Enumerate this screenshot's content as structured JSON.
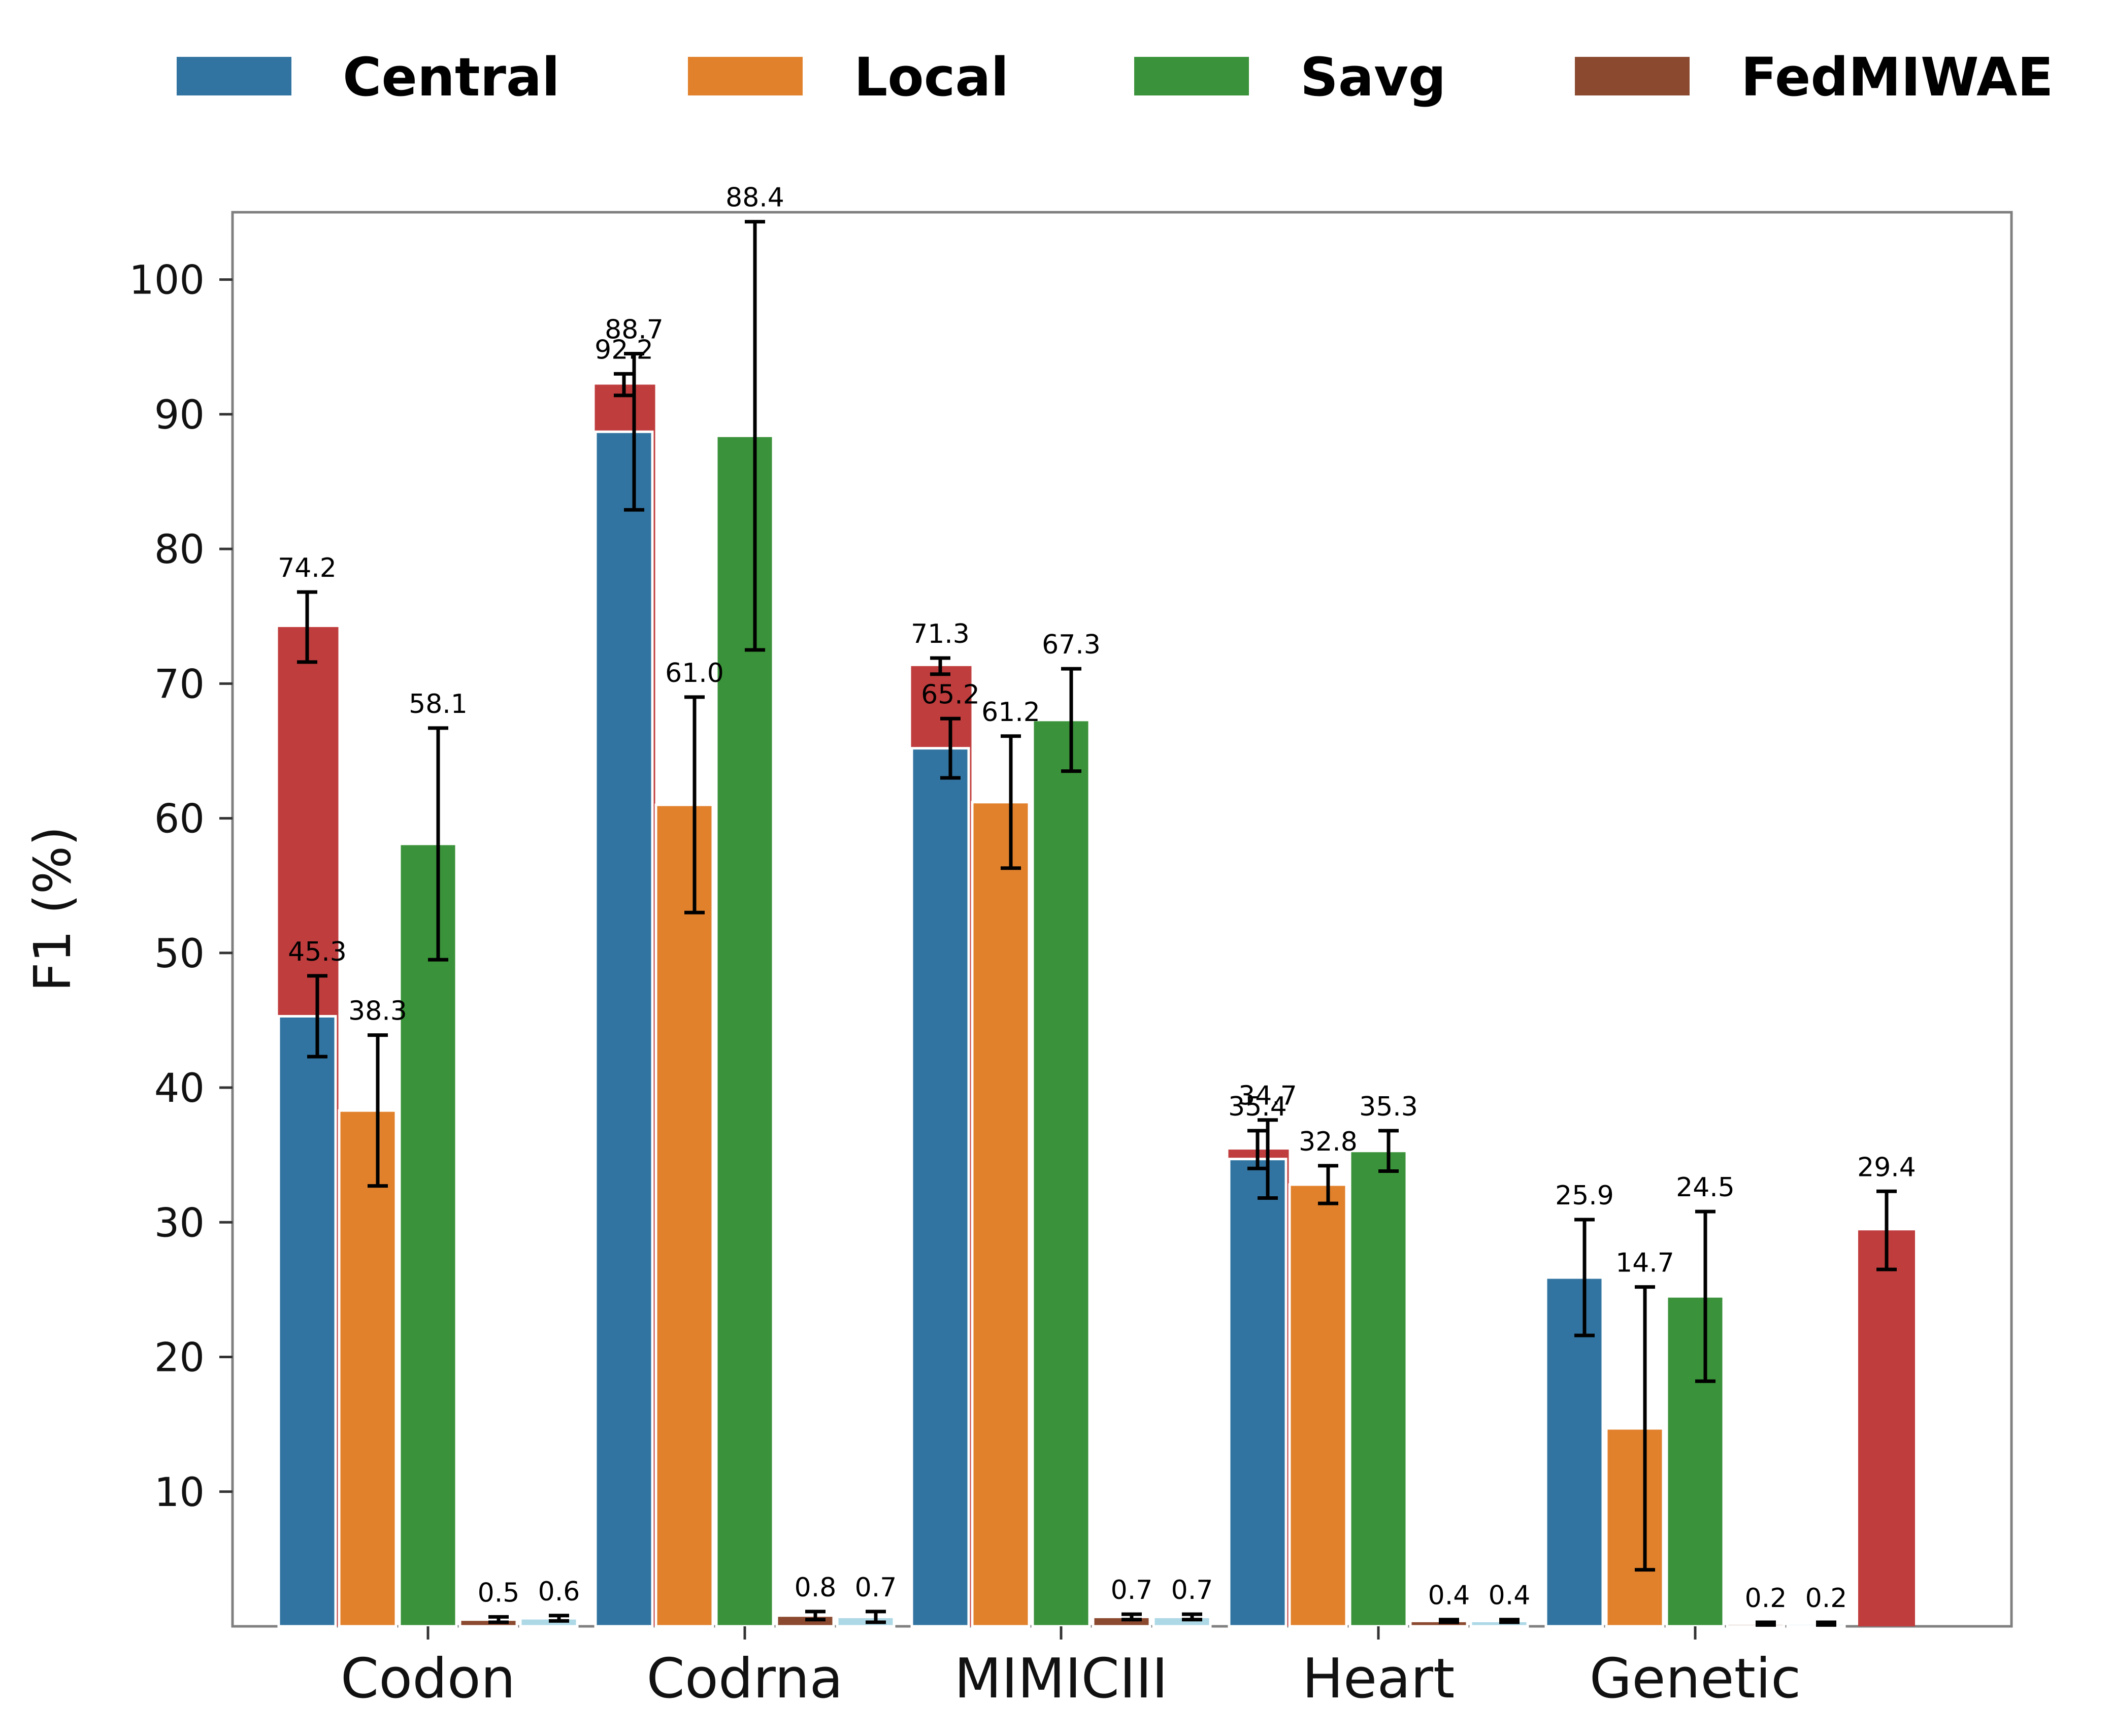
{
  "chart_data": {
    "type": "bar",
    "title": "",
    "xlabel": "",
    "ylabel": "F1 (%)",
    "ylim": [
      0,
      105
    ],
    "yticks": [
      10,
      20,
      30,
      40,
      50,
      60,
      70,
      80,
      90,
      100
    ],
    "grid": false,
    "legend_position": "top",
    "categories": [
      "Codon",
      "Codrna",
      "MIMICIII",
      "Heart",
      "Genetic"
    ],
    "series": [
      {
        "name": "Central",
        "color": "#3274a1",
        "in_legend": true,
        "values": [
          45.3,
          88.7,
          65.2,
          34.7,
          25.9
        ],
        "errors": [
          3.0,
          5.8,
          2.2,
          2.9,
          4.3
        ]
      },
      {
        "name": "Local",
        "color": "#e1812c",
        "in_legend": true,
        "values": [
          38.3,
          61.0,
          61.2,
          32.8,
          14.7
        ],
        "errors": [
          5.6,
          8.0,
          4.9,
          1.4,
          10.5
        ]
      },
      {
        "name": "Savg",
        "color": "#3a923a",
        "in_legend": true,
        "values": [
          58.1,
          88.4,
          67.3,
          35.3,
          24.5
        ],
        "errors": [
          8.6,
          15.9,
          3.8,
          1.5,
          6.3
        ]
      },
      {
        "name": "FedMIWAE",
        "color": "#8b4a2f",
        "in_legend": true,
        "values": [
          0.5,
          0.8,
          0.7,
          0.4,
          0.2
        ],
        "errors": [
          0.2,
          0.3,
          0.2,
          0.1,
          0.1
        ]
      },
      {
        "name": "",
        "color": "#add8e6",
        "in_legend": false,
        "values": [
          0.6,
          0.7,
          0.7,
          0.4,
          0.2
        ],
        "errors": [
          0.2,
          0.4,
          0.2,
          0.1,
          0.1
        ]
      },
      {
        "name": "",
        "color": "#c03d3e",
        "in_legend": false,
        "values": [
          74.2,
          92.2,
          71.3,
          35.4,
          29.4
        ],
        "errors": [
          2.6,
          0.8,
          0.6,
          1.4,
          2.9
        ]
      }
    ]
  }
}
